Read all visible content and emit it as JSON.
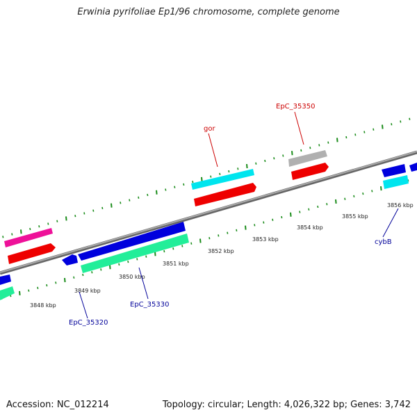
{
  "title": "Erwinia pyrifoliae Ep1/96 chromosome, complete genome",
  "footer": {
    "accession": "Accession: NC_012214",
    "topology": "Topology: circular; Length: 4,026,322 bp; Genes: 3,742"
  },
  "ticks": [
    "3848 kbp",
    "3849 kbp",
    "3850 kbp",
    "3851 kbp",
    "3852 kbp",
    "3853 kbp",
    "3854 kbp",
    "3855 kbp",
    "3856 kbp"
  ],
  "gene_labels": [
    {
      "name": "EpC_35350",
      "color": "#cc0000"
    },
    {
      "name": "gor",
      "color": "#cc0000"
    },
    {
      "name": "cybB",
      "color": "#000099"
    },
    {
      "name": "EpC_35330",
      "color": "#000099"
    },
    {
      "name": "EpC_35320",
      "color": "#000099"
    }
  ],
  "colors": {
    "backbone": "#888888",
    "tick_dots": "#1a8c1a",
    "blue_gene": "#0000dd",
    "red_gene": "#ee0000",
    "cyan_gene": "#00e5ee",
    "green_gene": "#22ee99",
    "pink_gene": "#ee1199",
    "gray_gene": "#b0b0b0"
  }
}
